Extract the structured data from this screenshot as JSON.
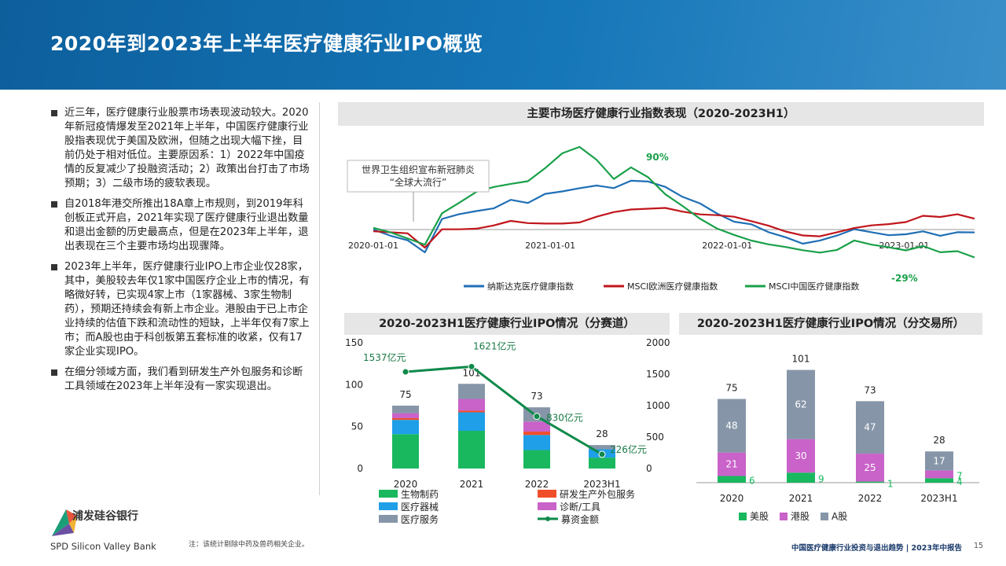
{
  "page_title": "2020年到2023年上半年医疗健康行业IPO概览",
  "left_text": {
    "bullets": [
      "近三年，医疗健康行业股票市场表现波动较大。2020年新冠疫情爆发至2021年上半年，中国医疗健康行业股指表现优于美国及欧洲，但随之出现大幅下挫，目前仍处于相对低位。主要原因系：1）2022年中国疫情的反复减少了投融资活动；2）政策出台打击了市场预期；3）二级市场的疲软表现。",
      "自2018年港交所推出18A章上市规则，到2019年科创板正式开启，2021年实现了医疗健康行业退出数量和退出金额的历史最高点，但是在2023年上半年，退出表现在三个主要市场均出现骤降。",
      "2023年上半年，医疗健康行业IPO上市企业仅28家，其中，美股较去年仅1家中国医疗企业上市的情况，有略微好转，已实现4家上市（1家器械、3家生物制药），预期还持续会有新上市企业。港股由于已上市企业持续的估值下跌和流动性的短缺，上半年仅有7家上市；而A股也由于科创板第五套标准的收紧，仅有17家企业实现IPO。",
      "在细分领域方面，我们看到研发生产外包服务和诊断工具领域在2023年上半年没有一家实现退出。"
    ]
  },
  "chart_data": [
    {
      "type": "line",
      "title": "主要市场医疗健康行业指数表现（2020-2023H1）",
      "x_ticks": [
        "2020-01-01",
        "2021-01-01",
        "2022-01-01",
        "2023-01-01"
      ],
      "annotation": "世界卫生组织宣布新冠肺炎\n“全球大流行”",
      "peak_label": "90%",
      "end_label": "-29%",
      "colors": [
        "#1f6fb5",
        "#c0161c",
        "#1aa04a"
      ],
      "series": [
        {
          "name": "纳斯达克医疗健康指数",
          "values": [
            0,
            -5,
            -10,
            -25,
            10,
            15,
            20,
            25,
            35,
            30,
            38,
            40,
            45,
            50,
            48,
            55,
            52,
            45,
            35,
            30,
            20,
            10,
            5,
            -5,
            -10,
            -15,
            -10,
            -5,
            0,
            -5,
            -8,
            -5,
            0,
            -5,
            -3,
            -5
          ]
        },
        {
          "name": "MSCI欧洲医疗健康指数",
          "values": [
            0,
            -3,
            -6,
            -22,
            0,
            2,
            3,
            5,
            8,
            5,
            6,
            8,
            10,
            15,
            18,
            20,
            22,
            25,
            22,
            18,
            15,
            12,
            8,
            5,
            0,
            -5,
            -8,
            -5,
            0,
            5,
            8,
            10,
            15,
            12,
            15,
            12
          ]
        },
        {
          "name": "MSCI中国医疗健康指数",
          "values": [
            0,
            -5,
            -10,
            -15,
            20,
            30,
            40,
            45,
            50,
            55,
            70,
            85,
            90,
            75,
            55,
            70,
            60,
            40,
            25,
            10,
            0,
            -5,
            -10,
            -15,
            -20,
            -25,
            -27,
            -22,
            -10,
            -15,
            -20,
            -25,
            -20,
            -25,
            -22,
            -29
          ]
        }
      ]
    },
    {
      "type": "bar",
      "title": "2020-2023H1医疗健康行业IPO情况（分赛道）",
      "categories": [
        "2020",
        "2021",
        "2022",
        "2023H1"
      ],
      "y_ticks": [
        0,
        50,
        100,
        150
      ],
      "y2_ticks": [
        0,
        500,
        1000,
        1500,
        2000
      ],
      "totals": [
        75,
        101,
        73,
        28
      ],
      "series": [
        {
          "name": "生物制药",
          "color": "#19b85f",
          "values": [
            41,
            45,
            22,
            13
          ]
        },
        {
          "name": "医疗器械",
          "color": "#1e9fe8",
          "values": [
            17,
            22,
            18,
            10
          ]
        },
        {
          "name": "研发生产外包服务",
          "color": "#f04e2a",
          "values": [
            2,
            2,
            4,
            0
          ]
        },
        {
          "name": "诊断/工具",
          "color": "#c962c9",
          "values": [
            6,
            14,
            12,
            0
          ]
        },
        {
          "name": "医疗服务",
          "color": "#8696a8",
          "values": [
            9,
            18,
            17,
            5
          ]
        }
      ],
      "line_series": {
        "name": "募资金额",
        "color": "#0f8a4a",
        "values": [
          1537,
          1621,
          830,
          226
        ],
        "labels": [
          "1537亿元",
          "1621亿元",
          "830亿元",
          "226亿元"
        ]
      }
    },
    {
      "type": "bar",
      "title": "2020-2023H1医疗健康行业IPO情况（分交易所）",
      "categories": [
        "2020",
        "2021",
        "2022",
        "2023H1"
      ],
      "totals": [
        75,
        101,
        73,
        28
      ],
      "series": [
        {
          "name": "美股",
          "color": "#19b85f",
          "values": [
            6,
            9,
            1,
            4
          ]
        },
        {
          "name": "港股",
          "color": "#c962c9",
          "values": [
            21,
            30,
            25,
            7
          ]
        },
        {
          "name": "A股",
          "color": "#8696a8",
          "values": [
            48,
            62,
            47,
            17
          ]
        }
      ]
    }
  ],
  "footnote": "注：该统计剔除中药及兽药相关企业。",
  "footer": "中国医疗健康行业投资与退出趋势 | 2023年中报告",
  "page_number": "15",
  "logo": {
    "cn": "浦发硅谷银行",
    "en": "SPD Silicon Valley Bank"
  }
}
